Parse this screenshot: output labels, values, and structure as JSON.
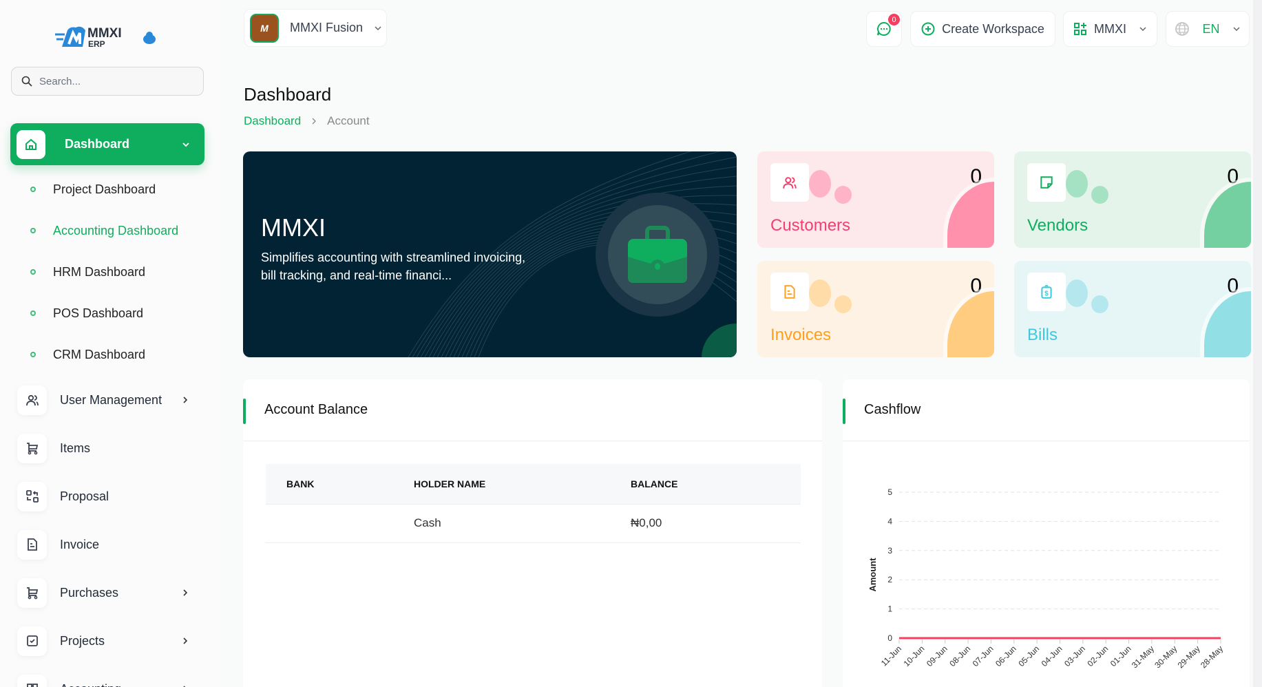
{
  "brand": {
    "logo_text": "MMXI",
    "logo_sub": "ERP",
    "color": "#0fae5e"
  },
  "search": {
    "placeholder": "Search..."
  },
  "sidebar": {
    "active": {
      "label": "Dashboard"
    },
    "sub_items": [
      {
        "label": "Project Dashboard"
      },
      {
        "label": "Accounting Dashboard",
        "active": true
      },
      {
        "label": "HRM Dashboard"
      },
      {
        "label": "POS Dashboard"
      },
      {
        "label": "CRM Dashboard"
      }
    ],
    "items": [
      {
        "label": "User Management",
        "icon": "users-icon",
        "chevron": true
      },
      {
        "label": "Items",
        "icon": "cart-icon"
      },
      {
        "label": "Proposal",
        "icon": "swap-icon"
      },
      {
        "label": "Invoice",
        "icon": "file-icon"
      },
      {
        "label": "Purchases",
        "icon": "cart-icon",
        "chevron": true
      },
      {
        "label": "Projects",
        "icon": "checkbox-icon",
        "chevron": true
      },
      {
        "label": "Accounting",
        "icon": "grid-icon",
        "chevron": true
      }
    ]
  },
  "topbar": {
    "workspace": "MMXI Fusion",
    "workspace_logo": "MMXI FUSION",
    "chat_badge": "0",
    "create_workspace": "Create Workspace",
    "company": "MMXI",
    "language": "EN"
  },
  "page": {
    "title": "Dashboard",
    "breadcrumb": [
      "Dashboard",
      "Account"
    ]
  },
  "hero": {
    "title": "MMXI",
    "text": "Simplifies accounting with streamlined invoicing, bill tracking, and real-time financi..."
  },
  "stats": [
    {
      "name": "Customers",
      "value": "0",
      "color": "#f43f6e",
      "bg": "#fde8ec",
      "blob": "#ffb3c6",
      "corner": "#ff91ac",
      "icon": "users-icon"
    },
    {
      "name": "Vendors",
      "value": "0",
      "color": "#0fae5e",
      "bg": "#e4f4ea",
      "blob": "#a5e2c3",
      "corner": "#74d0a0",
      "icon": "note-icon"
    },
    {
      "name": "Invoices",
      "value": "0",
      "color": "#ff9f1c",
      "bg": "#fdf2e3",
      "blob": "#ffdca8",
      "corner": "#ffcc80",
      "icon": "file-icon"
    },
    {
      "name": "Bills",
      "value": "0",
      "color": "#3ec8dc",
      "bg": "#e6f6f7",
      "blob": "#b5e8ee",
      "corner": "#93dfe6",
      "icon": "clipboard-dollar-icon"
    }
  ],
  "account_balance": {
    "title": "Account Balance",
    "columns": [
      "BANK",
      "HOLDER NAME",
      "BALANCE"
    ],
    "rows": [
      [
        "",
        "Cash",
        "₦0,00"
      ]
    ]
  },
  "cashflow": {
    "title": "Cashflow"
  },
  "chart_data": {
    "type": "line",
    "title": "",
    "ylabel": "Amount",
    "xlabel": "",
    "ylim": [
      0,
      5
    ],
    "yticks": [
      "0",
      "1",
      "2",
      "3",
      "4",
      "5"
    ],
    "grid": true,
    "categories": [
      "11-Jun",
      "10-Jun",
      "09-Jun",
      "08-Jun",
      "07-Jun",
      "06-Jun",
      "05-Jun",
      "04-Jun",
      "03-Jun",
      "02-Jun",
      "01-Jun",
      "31-May",
      "30-May",
      "29-May",
      "28-May"
    ],
    "series": [
      {
        "values": [
          0,
          0,
          0,
          0,
          0,
          0,
          0,
          0,
          0,
          0,
          0,
          0,
          0,
          0,
          0
        ],
        "color": "#f43f5e"
      }
    ]
  }
}
